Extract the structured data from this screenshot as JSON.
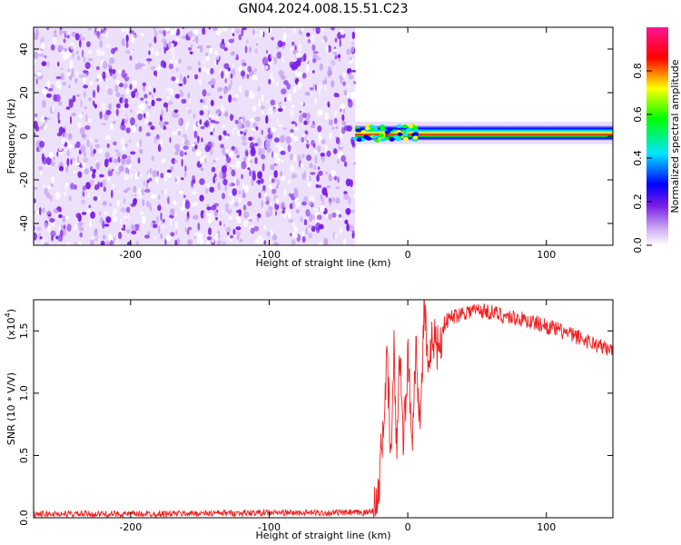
{
  "title": "GN04.2024.008.15.51.C23",
  "colors": {
    "snr_line": "#ee2222",
    "noise_dots": "#7a1ee6",
    "noise_light": "#c9a6f2",
    "frame": "#000000"
  },
  "chart_data": [
    {
      "type": "heatmap",
      "xlabel": "Height of straight line (km)",
      "ylabel": "Frequency (Hz)",
      "xlim": [
        -270,
        148
      ],
      "ylim": [
        -50,
        50
      ],
      "xticks": [
        -200,
        -100,
        0,
        100
      ],
      "yticks": [
        -40,
        -20,
        0,
        20,
        40
      ],
      "noise_region_x": [
        -270,
        -38
      ],
      "signal_band_hz": [
        -2,
        5
      ],
      "colorbar": {
        "label": "Normalized spectral amplitude",
        "range": [
          0,
          1
        ],
        "ticks": [
          0.0,
          0.2,
          0.4,
          0.6,
          0.8
        ],
        "colormap": [
          "#ffffff",
          "#7a1ee6",
          "#0000ff",
          "#00e5ff",
          "#00ff00",
          "#ffff00",
          "#ff0000",
          "#ff1493"
        ]
      }
    },
    {
      "type": "line",
      "xlabel": "Height of straight line (km)",
      "ylabel": "SNR (10 * V/V)",
      "yscale_label": "(x10",
      "yscale_exp": "4",
      "xlim": [
        -270,
        148
      ],
      "ylim": [
        0,
        17500
      ],
      "xticks": [
        -200,
        -100,
        0,
        100
      ],
      "yticks": [
        "0.0",
        "0.5",
        "1.0",
        "1.5"
      ],
      "series": [
        {
          "x": [
            -270,
            -200,
            -100,
            -30,
            -22,
            -18,
            -15,
            -12,
            -10,
            -8,
            -6,
            -3,
            0,
            3,
            6,
            9,
            12,
            15,
            18,
            22,
            26,
            30,
            40,
            50,
            60,
            70,
            80,
            90,
            100,
            110,
            120,
            130,
            140,
            148
          ],
          "y": [
            300,
            300,
            400,
            400,
            800,
            7000,
            12500,
            4500,
            13500,
            5000,
            14000,
            6000,
            13000,
            6500,
            14000,
            7000,
            17500,
            10500,
            15000,
            13500,
            15500,
            16000,
            16500,
            16700,
            16500,
            16200,
            16000,
            15700,
            15400,
            15000,
            14600,
            14200,
            13700,
            13400
          ]
        }
      ]
    }
  ]
}
